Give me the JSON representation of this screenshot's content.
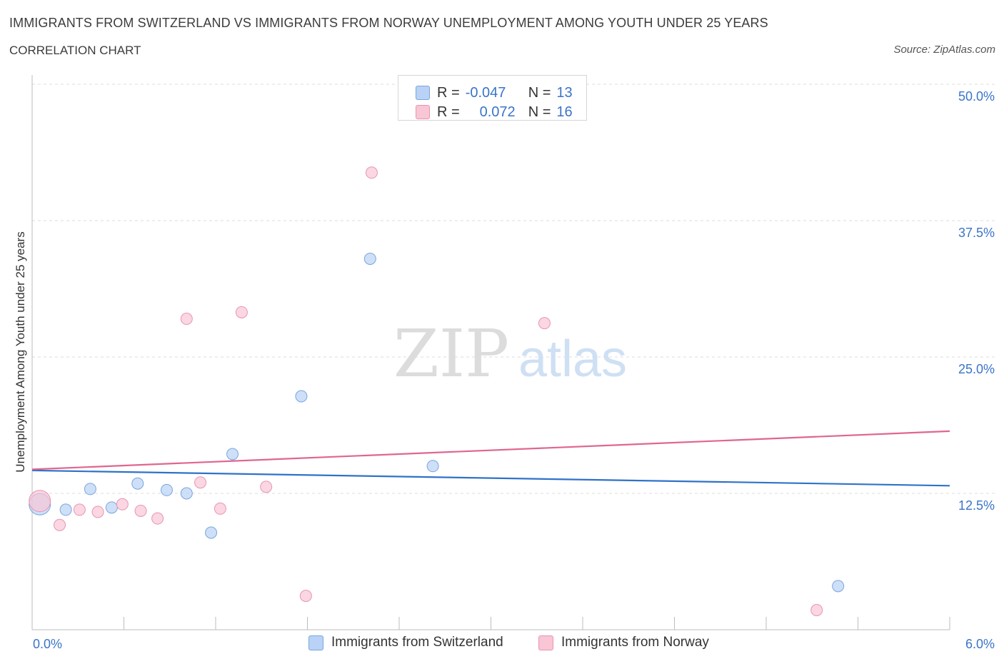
{
  "title": "IMMIGRANTS FROM SWITZERLAND VS IMMIGRANTS FROM NORWAY UNEMPLOYMENT AMONG YOUTH UNDER 25 YEARS",
  "subtitle": "CORRELATION CHART",
  "source": "Source: ZipAtlas.com",
  "watermark": {
    "zip": "ZIP",
    "atlas": "atlas"
  },
  "colors": {
    "switzerland_fill": "#b9d2f5",
    "switzerland_stroke": "#7aa5de",
    "switzerland_line": "#2f72c9",
    "norway_fill": "#f8c6d5",
    "norway_stroke": "#e994b0",
    "norway_line": "#e0668f",
    "tick_label": "#3b74c9",
    "grid": "#dcdcdc"
  },
  "legend": {
    "r_label": "R =",
    "n_label": "N =",
    "rows": [
      {
        "series": "switzerland",
        "r": "-0.047",
        "n": "13"
      },
      {
        "series": "norway",
        "r": "0.072",
        "n": "16"
      }
    ]
  },
  "chart_data": {
    "type": "scatter",
    "xlabel": "",
    "ylabel": "Unemployment Among Youth under 25 years",
    "xlim": [
      0,
      6
    ],
    "ylim": [
      0,
      50
    ],
    "x_tick_labels": [
      "0.0%",
      "6.0%"
    ],
    "y_tick_labels": [
      "12.5%",
      "25.0%",
      "37.5%",
      "50.0%"
    ],
    "y_ticks": [
      12.5,
      25.0,
      37.5,
      50.0
    ],
    "grid": true,
    "legend_position": "bottom-center",
    "series": [
      {
        "name": "Immigrants from Switzerland",
        "key": "switzerland",
        "points": [
          {
            "x": 0.05,
            "y": 11.5,
            "big": true
          },
          {
            "x": 0.22,
            "y": 11.0
          },
          {
            "x": 0.38,
            "y": 12.9
          },
          {
            "x": 0.52,
            "y": 11.2
          },
          {
            "x": 0.69,
            "y": 13.4
          },
          {
            "x": 0.88,
            "y": 12.8
          },
          {
            "x": 1.01,
            "y": 12.5
          },
          {
            "x": 1.17,
            "y": 8.9
          },
          {
            "x": 1.31,
            "y": 16.1
          },
          {
            "x": 1.76,
            "y": 21.4
          },
          {
            "x": 2.21,
            "y": 34.0
          },
          {
            "x": 2.62,
            "y": 15.0
          },
          {
            "x": 5.27,
            "y": 4.0
          }
        ],
        "trend": {
          "x": [
            0,
            6
          ],
          "y": [
            14.6,
            13.2
          ]
        }
      },
      {
        "name": "Immigrants from Norway",
        "key": "norway",
        "points": [
          {
            "x": 0.05,
            "y": 11.8,
            "big": true
          },
          {
            "x": 0.18,
            "y": 9.6
          },
          {
            "x": 0.31,
            "y": 11.0
          },
          {
            "x": 0.43,
            "y": 10.8
          },
          {
            "x": 0.59,
            "y": 11.5
          },
          {
            "x": 0.71,
            "y": 10.9
          },
          {
            "x": 0.82,
            "y": 10.2
          },
          {
            "x": 1.01,
            "y": 28.5
          },
          {
            "x": 1.1,
            "y": 13.5
          },
          {
            "x": 1.23,
            "y": 11.1
          },
          {
            "x": 1.37,
            "y": 29.1
          },
          {
            "x": 1.53,
            "y": 13.1
          },
          {
            "x": 1.79,
            "y": 3.1
          },
          {
            "x": 2.22,
            "y": 41.9
          },
          {
            "x": 3.35,
            "y": 28.1
          },
          {
            "x": 5.13,
            "y": 1.8
          }
        ],
        "trend": {
          "x": [
            0,
            6
          ],
          "y": [
            14.7,
            18.2
          ]
        }
      }
    ]
  }
}
